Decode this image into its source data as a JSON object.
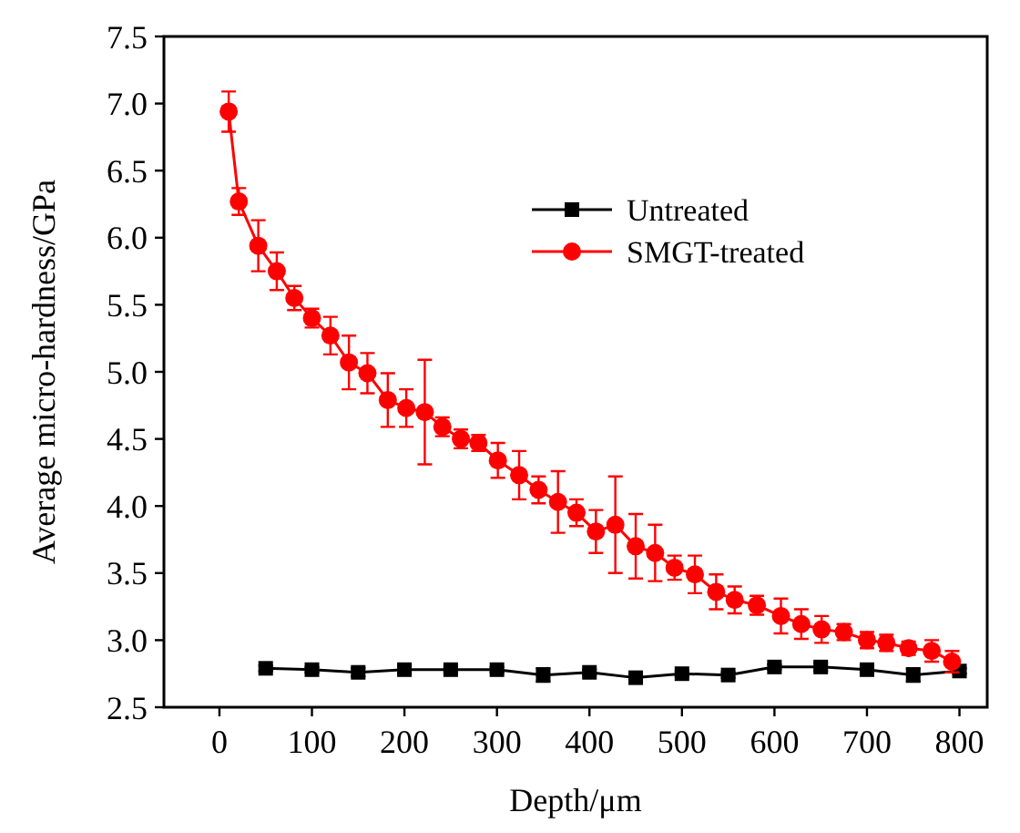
{
  "chart_data": {
    "type": "line",
    "xlabel": "Depth/μm",
    "ylabel": "Average micro-hardness/GPa",
    "xlim": [
      -60,
      830
    ],
    "xticks": [
      0,
      100,
      200,
      300,
      400,
      500,
      600,
      700,
      800
    ],
    "ylim": [
      2.5,
      7.5
    ],
    "yticks": [
      {
        "value": 2.5,
        "label": "2.5"
      },
      {
        "value": 3,
        "label": "3.0"
      },
      {
        "value": 3.5,
        "label": "3.5"
      },
      {
        "value": 4,
        "label": "4.0"
      },
      {
        "value": 4.5,
        "label": "4.5"
      },
      {
        "value": 5,
        "label": "5.0"
      },
      {
        "value": 5.5,
        "label": "5.5"
      },
      {
        "value": 6,
        "label": "6.0"
      },
      {
        "value": 6.5,
        "label": "6.5"
      },
      {
        "value": 7,
        "label": "7.0"
      },
      {
        "value": 7.5,
        "label": "7.5"
      }
    ],
    "grid": false,
    "legend": "top right",
    "series": [
      {
        "name": "Untreated",
        "color": "#000000",
        "marker": "square",
        "x": [
          50,
          100,
          150,
          200,
          250,
          300,
          350,
          400,
          450,
          500,
          550,
          600,
          650,
          700,
          750,
          800
        ],
        "values": [
          2.79,
          2.78,
          2.76,
          2.78,
          2.78,
          2.78,
          2.74,
          2.76,
          2.72,
          2.75,
          2.74,
          2.8,
          2.8,
          2.78,
          2.74,
          2.77
        ],
        "errors": [
          0.02,
          0.02,
          0.03,
          0.03,
          0.02,
          0.02,
          0.05,
          0.02,
          0.03,
          0.02,
          0.02,
          0.02,
          0.03,
          0.02,
          0.05,
          0.02
        ]
      },
      {
        "name": "SMGT-treated",
        "color": "#ff0000",
        "marker": "circle",
        "x": [
          10,
          21,
          42,
          62,
          81,
          100,
          120,
          140,
          160,
          182,
          202,
          222,
          241,
          261,
          280,
          301,
          324,
          345,
          366,
          386,
          407,
          428,
          450,
          471,
          492,
          514,
          537,
          557,
          581,
          607,
          629,
          651,
          675,
          700,
          721,
          745,
          770,
          792
        ],
        "values": [
          6.94,
          6.27,
          5.94,
          5.75,
          5.55,
          5.4,
          5.27,
          5.07,
          4.99,
          4.79,
          4.73,
          4.7,
          4.59,
          4.5,
          4.47,
          4.34,
          4.23,
          4.12,
          4.03,
          3.95,
          3.81,
          3.86,
          3.7,
          3.65,
          3.54,
          3.49,
          3.36,
          3.3,
          3.26,
          3.18,
          3.12,
          3.08,
          3.06,
          3.0,
          2.98,
          2.94,
          2.92,
          2.84
        ],
        "errors": [
          0.15,
          0.1,
          0.19,
          0.14,
          0.09,
          0.07,
          0.14,
          0.2,
          0.15,
          0.2,
          0.14,
          0.39,
          0.07,
          0.07,
          0.06,
          0.13,
          0.18,
          0.1,
          0.23,
          0.1,
          0.16,
          0.36,
          0.24,
          0.21,
          0.09,
          0.14,
          0.13,
          0.1,
          0.07,
          0.13,
          0.11,
          0.1,
          0.06,
          0.06,
          0.06,
          0.05,
          0.08,
          0.08
        ]
      }
    ]
  }
}
